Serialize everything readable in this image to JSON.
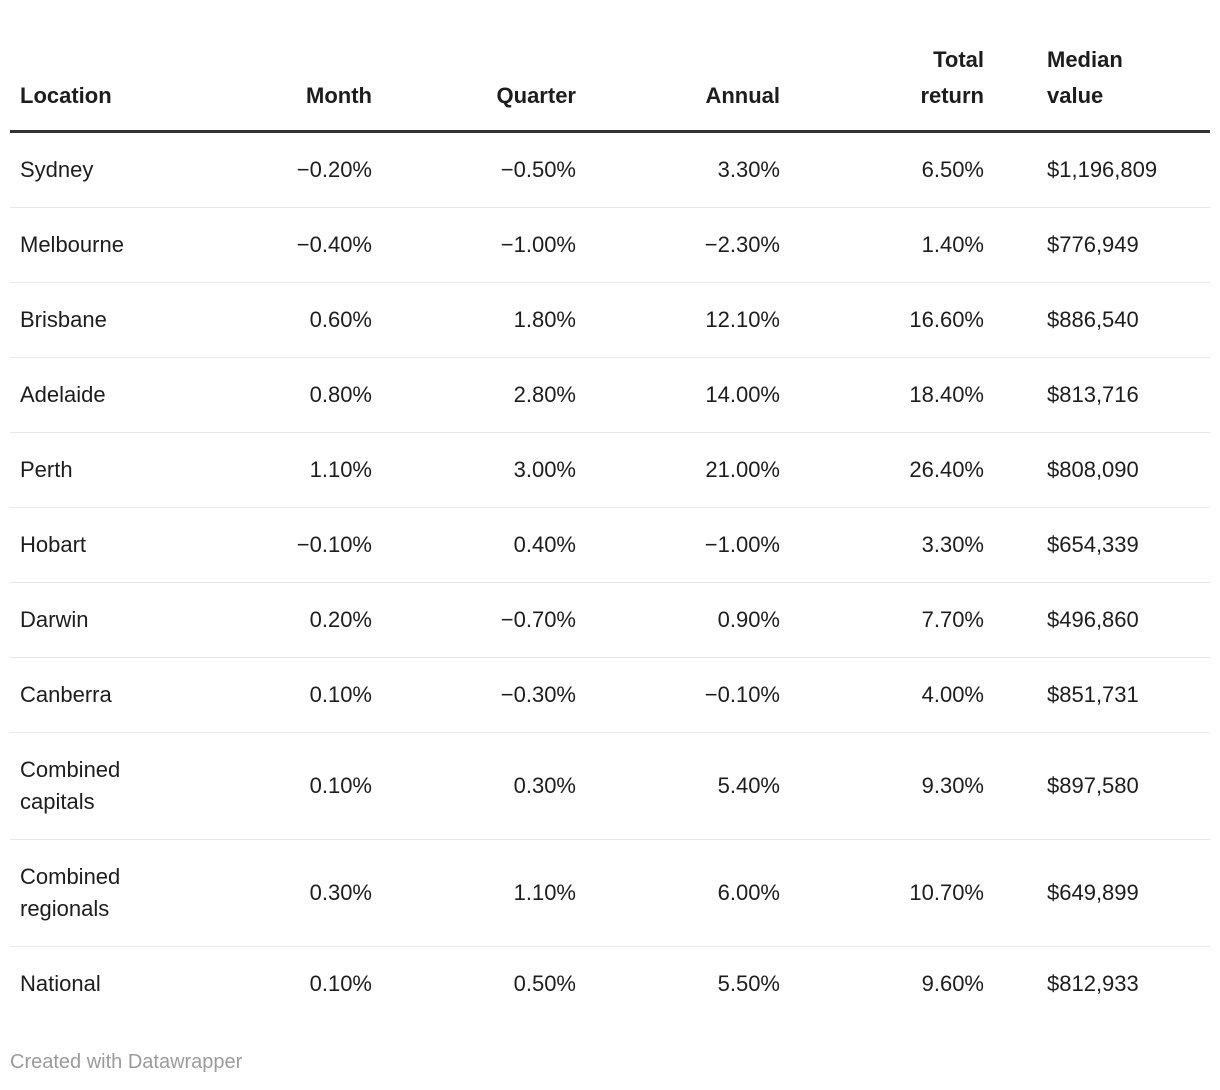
{
  "chart_data": {
    "type": "table",
    "columns": [
      {
        "key": "location",
        "label": "Location",
        "align": "left"
      },
      {
        "key": "month",
        "label": "Month",
        "align": "right"
      },
      {
        "key": "quarter",
        "label": "Quarter",
        "align": "right"
      },
      {
        "key": "annual",
        "label": "Annual",
        "align": "right"
      },
      {
        "key": "total_return",
        "label": "Total return",
        "align": "right"
      },
      {
        "key": "median_value",
        "label": "Median value",
        "align": "left"
      }
    ],
    "rows": [
      {
        "location": "Sydney",
        "month": "−0.20%",
        "quarter": "−0.50%",
        "annual": "3.30%",
        "total_return": "6.50%",
        "median_value": "$1,196,809"
      },
      {
        "location": "Melbourne",
        "month": "−0.40%",
        "quarter": "−1.00%",
        "annual": "−2.30%",
        "total_return": "1.40%",
        "median_value": "$776,949"
      },
      {
        "location": "Brisbane",
        "month": "0.60%",
        "quarter": "1.80%",
        "annual": "12.10%",
        "total_return": "16.60%",
        "median_value": "$886,540"
      },
      {
        "location": "Adelaide",
        "month": "0.80%",
        "quarter": "2.80%",
        "annual": "14.00%",
        "total_return": "18.40%",
        "median_value": "$813,716"
      },
      {
        "location": "Perth",
        "month": "1.10%",
        "quarter": "3.00%",
        "annual": "21.00%",
        "total_return": "26.40%",
        "median_value": "$808,090"
      },
      {
        "location": "Hobart",
        "month": "−0.10%",
        "quarter": "0.40%",
        "annual": "−1.00%",
        "total_return": "3.30%",
        "median_value": "$654,339"
      },
      {
        "location": "Darwin",
        "month": "0.20%",
        "quarter": "−0.70%",
        "annual": "0.90%",
        "total_return": "7.70%",
        "median_value": "$496,860"
      },
      {
        "location": "Canberra",
        "month": "0.10%",
        "quarter": "−0.30%",
        "annual": "−0.10%",
        "total_return": "4.00%",
        "median_value": "$851,731"
      },
      {
        "location": "Combined capitals",
        "month": "0.10%",
        "quarter": "0.30%",
        "annual": "5.40%",
        "total_return": "9.30%",
        "median_value": "$897,580"
      },
      {
        "location": "Combined regionals",
        "month": "0.30%",
        "quarter": "1.10%",
        "annual": "6.00%",
        "total_return": "10.70%",
        "median_value": "$649,899"
      },
      {
        "location": "National",
        "month": "0.10%",
        "quarter": "0.50%",
        "annual": "5.50%",
        "total_return": "9.60%",
        "median_value": "$812,933"
      }
    ],
    "title": "",
    "layout_hints": {
      "grid": "horizontal-rules-only",
      "header_rule": true
    }
  },
  "footer": {
    "attribution": "Created with Datawrapper"
  },
  "colors": {
    "text": "#1d1d1d",
    "header_rule": "#333333",
    "row_rule": "#e8e8e8",
    "attribution": "#9b9b9b",
    "background": "#ffffff"
  }
}
